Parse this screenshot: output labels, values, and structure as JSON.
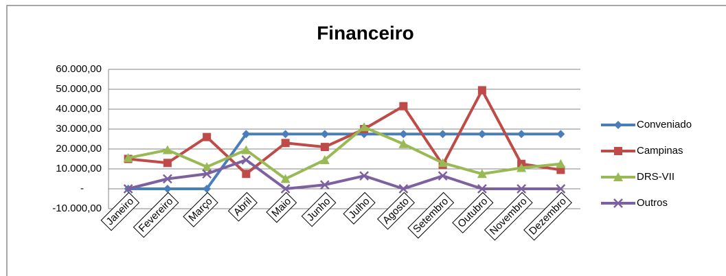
{
  "chart_data": {
    "type": "line",
    "title": "Financeiro",
    "categories": [
      "Janeiro",
      "Fevereiro",
      "Março",
      "Abril",
      "Maio",
      "Junho",
      "Julho",
      "Agosto",
      "Setembro",
      "Outubro",
      "Novembro",
      "Dezembro"
    ],
    "series": [
      {
        "name": "Conveniado",
        "color": "#4a7ebb",
        "marker": "diamond",
        "values": [
          0,
          0,
          0,
          27500,
          27500,
          27500,
          27500,
          27500,
          27500,
          27500,
          27500,
          27500
        ]
      },
      {
        "name": "Campinas",
        "color": "#be4b48",
        "marker": "square",
        "values": [
          15000,
          13000,
          26000,
          7500,
          23000,
          21000,
          30000,
          41500,
          12000,
          49500,
          12500,
          9500
        ]
      },
      {
        "name": "DRS-VII",
        "color": "#98b954",
        "marker": "triangle",
        "values": [
          15500,
          19500,
          11000,
          19500,
          5000,
          14500,
          31000,
          22500,
          13000,
          7500,
          10500,
          12500
        ]
      },
      {
        "name": "Outros",
        "color": "#7d60a0",
        "marker": "x",
        "values": [
          0,
          5000,
          7500,
          14500,
          0,
          2000,
          6500,
          0,
          6500,
          0,
          0,
          0
        ]
      }
    ],
    "ylim": [
      -10000,
      60000
    ],
    "yticks": [
      {
        "value": -10000,
        "label": "-10.000,00"
      },
      {
        "value": 0,
        "label": "-"
      },
      {
        "value": 10000,
        "label": "10.000,00"
      },
      {
        "value": 20000,
        "label": "20.000,00"
      },
      {
        "value": 30000,
        "label": "30.000,00"
      },
      {
        "value": 40000,
        "label": "40.000,00"
      },
      {
        "value": 50000,
        "label": "50.000,00"
      },
      {
        "value": 60000,
        "label": "60.000,00"
      }
    ],
    "grid": true,
    "legend": "right"
  }
}
